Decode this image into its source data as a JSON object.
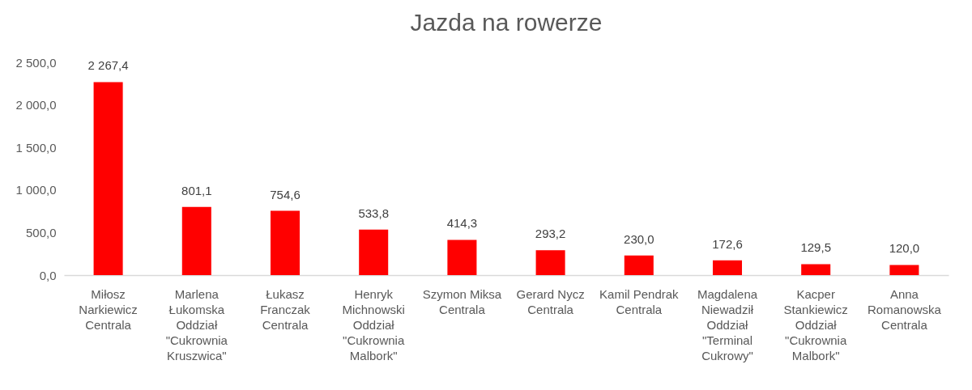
{
  "chart_data": {
    "type": "bar",
    "title": "Jazda na rowerze",
    "categories": [
      "Miłosz Narkiewicz Centrala",
      "Marlena Łukomska Oddział \"Cukrownia Kruszwica\"",
      "Łukasz Franczak Centrala",
      "Henryk Michnowski Oddział \"Cukrownia Malbork\"",
      "Szymon Miksa Centrala",
      "Gerard Nycz Centrala",
      "Kamil Pendrak Centrala",
      "Magdalena Niewadził Oddział \"Terminal Cukrowy\"",
      "Kacper Stankiewicz Oddział \"Cukrownia Malbork\"",
      "Anna Romanowska Centrala"
    ],
    "values": [
      2267.4,
      801.1,
      754.6,
      533.8,
      414.3,
      293.2,
      230.0,
      172.6,
      129.5,
      120.0
    ],
    "value_labels": [
      "2 267,4",
      "801,1",
      "754,6",
      "533,8",
      "414,3",
      "293,2",
      "230,0",
      "172,6",
      "129,5",
      "120,0"
    ],
    "color": "#ff0000",
    "ylim": [
      0,
      2500
    ],
    "yticks": [
      {
        "value": 0,
        "label": "0,0"
      },
      {
        "value": 500,
        "label": "500,0"
      },
      {
        "value": 1000,
        "label": "1 000,0"
      },
      {
        "value": 1500,
        "label": "1 500,0"
      },
      {
        "value": 2000,
        "label": "2 000,0"
      },
      {
        "value": 2500,
        "label": "2 500,0"
      }
    ]
  }
}
